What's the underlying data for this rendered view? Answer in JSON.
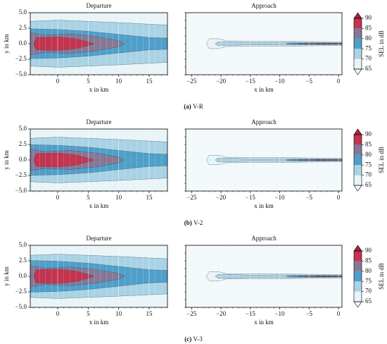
{
  "chart_data": [
    {
      "type": "contour",
      "title": "Departure",
      "xlabel": "x in km",
      "ylabel": "y in km",
      "xlim": [
        -4.5,
        18
      ],
      "ylim": [
        -5,
        5
      ],
      "xticks": [
        0,
        5,
        10,
        15
      ],
      "yticks": [
        {
          "value": -5,
          "label": "−5.0"
        },
        {
          "value": -2.5,
          "label": "−2.5"
        },
        {
          "value": 0,
          "label": "0.0"
        },
        {
          "value": 2.5,
          "label": "2.5"
        },
        {
          "value": 5,
          "label": "5.0"
        }
      ],
      "grid": true
    },
    {
      "type": "contour",
      "title": "Approach",
      "xlabel": "x in km",
      "xlim": [
        -26,
        0.6
      ],
      "ylim": [
        -5,
        5
      ],
      "xticks": [
        {
          "value": -25,
          "label": "−25"
        },
        {
          "value": -20,
          "label": "−20"
        },
        {
          "value": -15,
          "label": "−15"
        },
        {
          "value": -10,
          "label": "−10"
        },
        {
          "value": -5,
          "label": "−5"
        },
        0
      ],
      "grid": true
    },
    {
      "type": "colorbar",
      "label": "SEL in dB",
      "ticks": [
        65,
        70,
        75,
        80,
        85,
        90
      ],
      "colors": [
        "#e8f4f8",
        "#a9d3e5",
        "#4f9fca",
        "#857896",
        "#c2344f"
      ],
      "under_color": "#f3f9fb",
      "over_color": "#a8213f"
    },
    {
      "type": "contour",
      "title": "Departure",
      "xlabel": "x in km",
      "ylabel": "y in km",
      "xlim": [
        -4.5,
        18
      ],
      "ylim": [
        -5,
        5
      ],
      "xticks": [
        0,
        5,
        10,
        15
      ],
      "yticks": [
        {
          "value": -5,
          "label": "−5.0"
        },
        {
          "value": -2.5,
          "label": "−2.5"
        },
        {
          "value": 0,
          "label": "0.0"
        },
        {
          "value": 2.5,
          "label": "2.5"
        },
        {
          "value": 5,
          "label": "5.0"
        }
      ],
      "grid": true
    },
    {
      "type": "contour",
      "title": "Approach",
      "xlabel": "x in km",
      "xlim": [
        -26,
        0.6
      ],
      "ylim": [
        -5,
        5
      ],
      "xticks": [
        {
          "value": -25,
          "label": "−25"
        },
        {
          "value": -20,
          "label": "−20"
        },
        {
          "value": -15,
          "label": "−15"
        },
        {
          "value": -10,
          "label": "−10"
        },
        {
          "value": -5,
          "label": "−5"
        },
        0
      ],
      "grid": true
    },
    {
      "type": "colorbar",
      "label": "SEL in dB",
      "ticks": [
        65,
        70,
        75,
        80,
        85,
        90
      ],
      "colors": [
        "#e8f4f8",
        "#a9d3e5",
        "#4f9fca",
        "#857896",
        "#c2344f"
      ],
      "under_color": "#f3f9fb",
      "over_color": "#a8213f"
    },
    {
      "type": "contour",
      "title": "Departure",
      "xlabel": "x in km",
      "ylabel": "y in km",
      "xlim": [
        -4.5,
        18
      ],
      "ylim": [
        -5,
        5
      ],
      "xticks": [
        0,
        5,
        10,
        15
      ],
      "yticks": [
        {
          "value": -5,
          "label": "−5.0"
        },
        {
          "value": -2.5,
          "label": "−2.5"
        },
        {
          "value": 0,
          "label": "0.0"
        },
        {
          "value": 2.5,
          "label": "2.5"
        },
        {
          "value": 5,
          "label": "5.0"
        }
      ],
      "grid": true
    },
    {
      "type": "contour",
      "title": "Approach",
      "xlabel": "x in km",
      "xlim": [
        -26,
        0.6
      ],
      "ylim": [
        -5,
        5
      ],
      "xticks": [
        {
          "value": -25,
          "label": "−25"
        },
        {
          "value": -20,
          "label": "−20"
        },
        {
          "value": -15,
          "label": "−15"
        },
        {
          "value": -10,
          "label": "−10"
        },
        {
          "value": -5,
          "label": "−5"
        },
        0
      ],
      "grid": true
    },
    {
      "type": "colorbar",
      "label": "SEL in dB",
      "ticks": [
        65,
        70,
        75,
        80,
        85,
        90
      ],
      "colors": [
        "#e8f4f8",
        "#a9d3e5",
        "#4f9fca",
        "#857896",
        "#c2344f"
      ],
      "under_color": "#f3f9fb",
      "over_color": "#a8213f"
    }
  ],
  "captions": [
    {
      "label": "(a)",
      "text": "V-R"
    },
    {
      "label": "(b)",
      "text": "V-2"
    },
    {
      "label": "(c)",
      "text": "V-3"
    }
  ]
}
